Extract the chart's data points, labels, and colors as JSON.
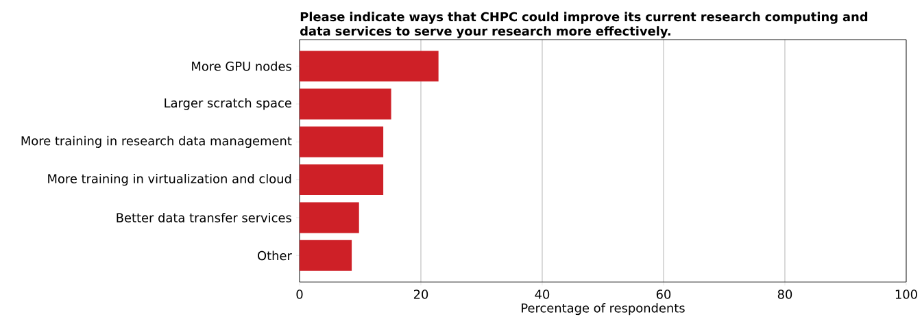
{
  "chart_data": {
    "type": "bar",
    "orientation": "horizontal",
    "title": "Please indicate ways that CHPC could improve its current research computing and data services to serve your research more effectively.",
    "xlabel": "Percentage of respondents",
    "categories": [
      "More GPU nodes",
      "Larger scratch space",
      "More training in research data management",
      "More training in virtualization and cloud",
      "Better data transfer services",
      "Other"
    ],
    "values": [
      22.9,
      15.1,
      13.8,
      13.8,
      9.8,
      8.6
    ],
    "color": "#ce2027",
    "xlim": [
      0,
      100
    ],
    "xticks": [
      0,
      20,
      40,
      60,
      80,
      100
    ],
    "grid": "x"
  }
}
